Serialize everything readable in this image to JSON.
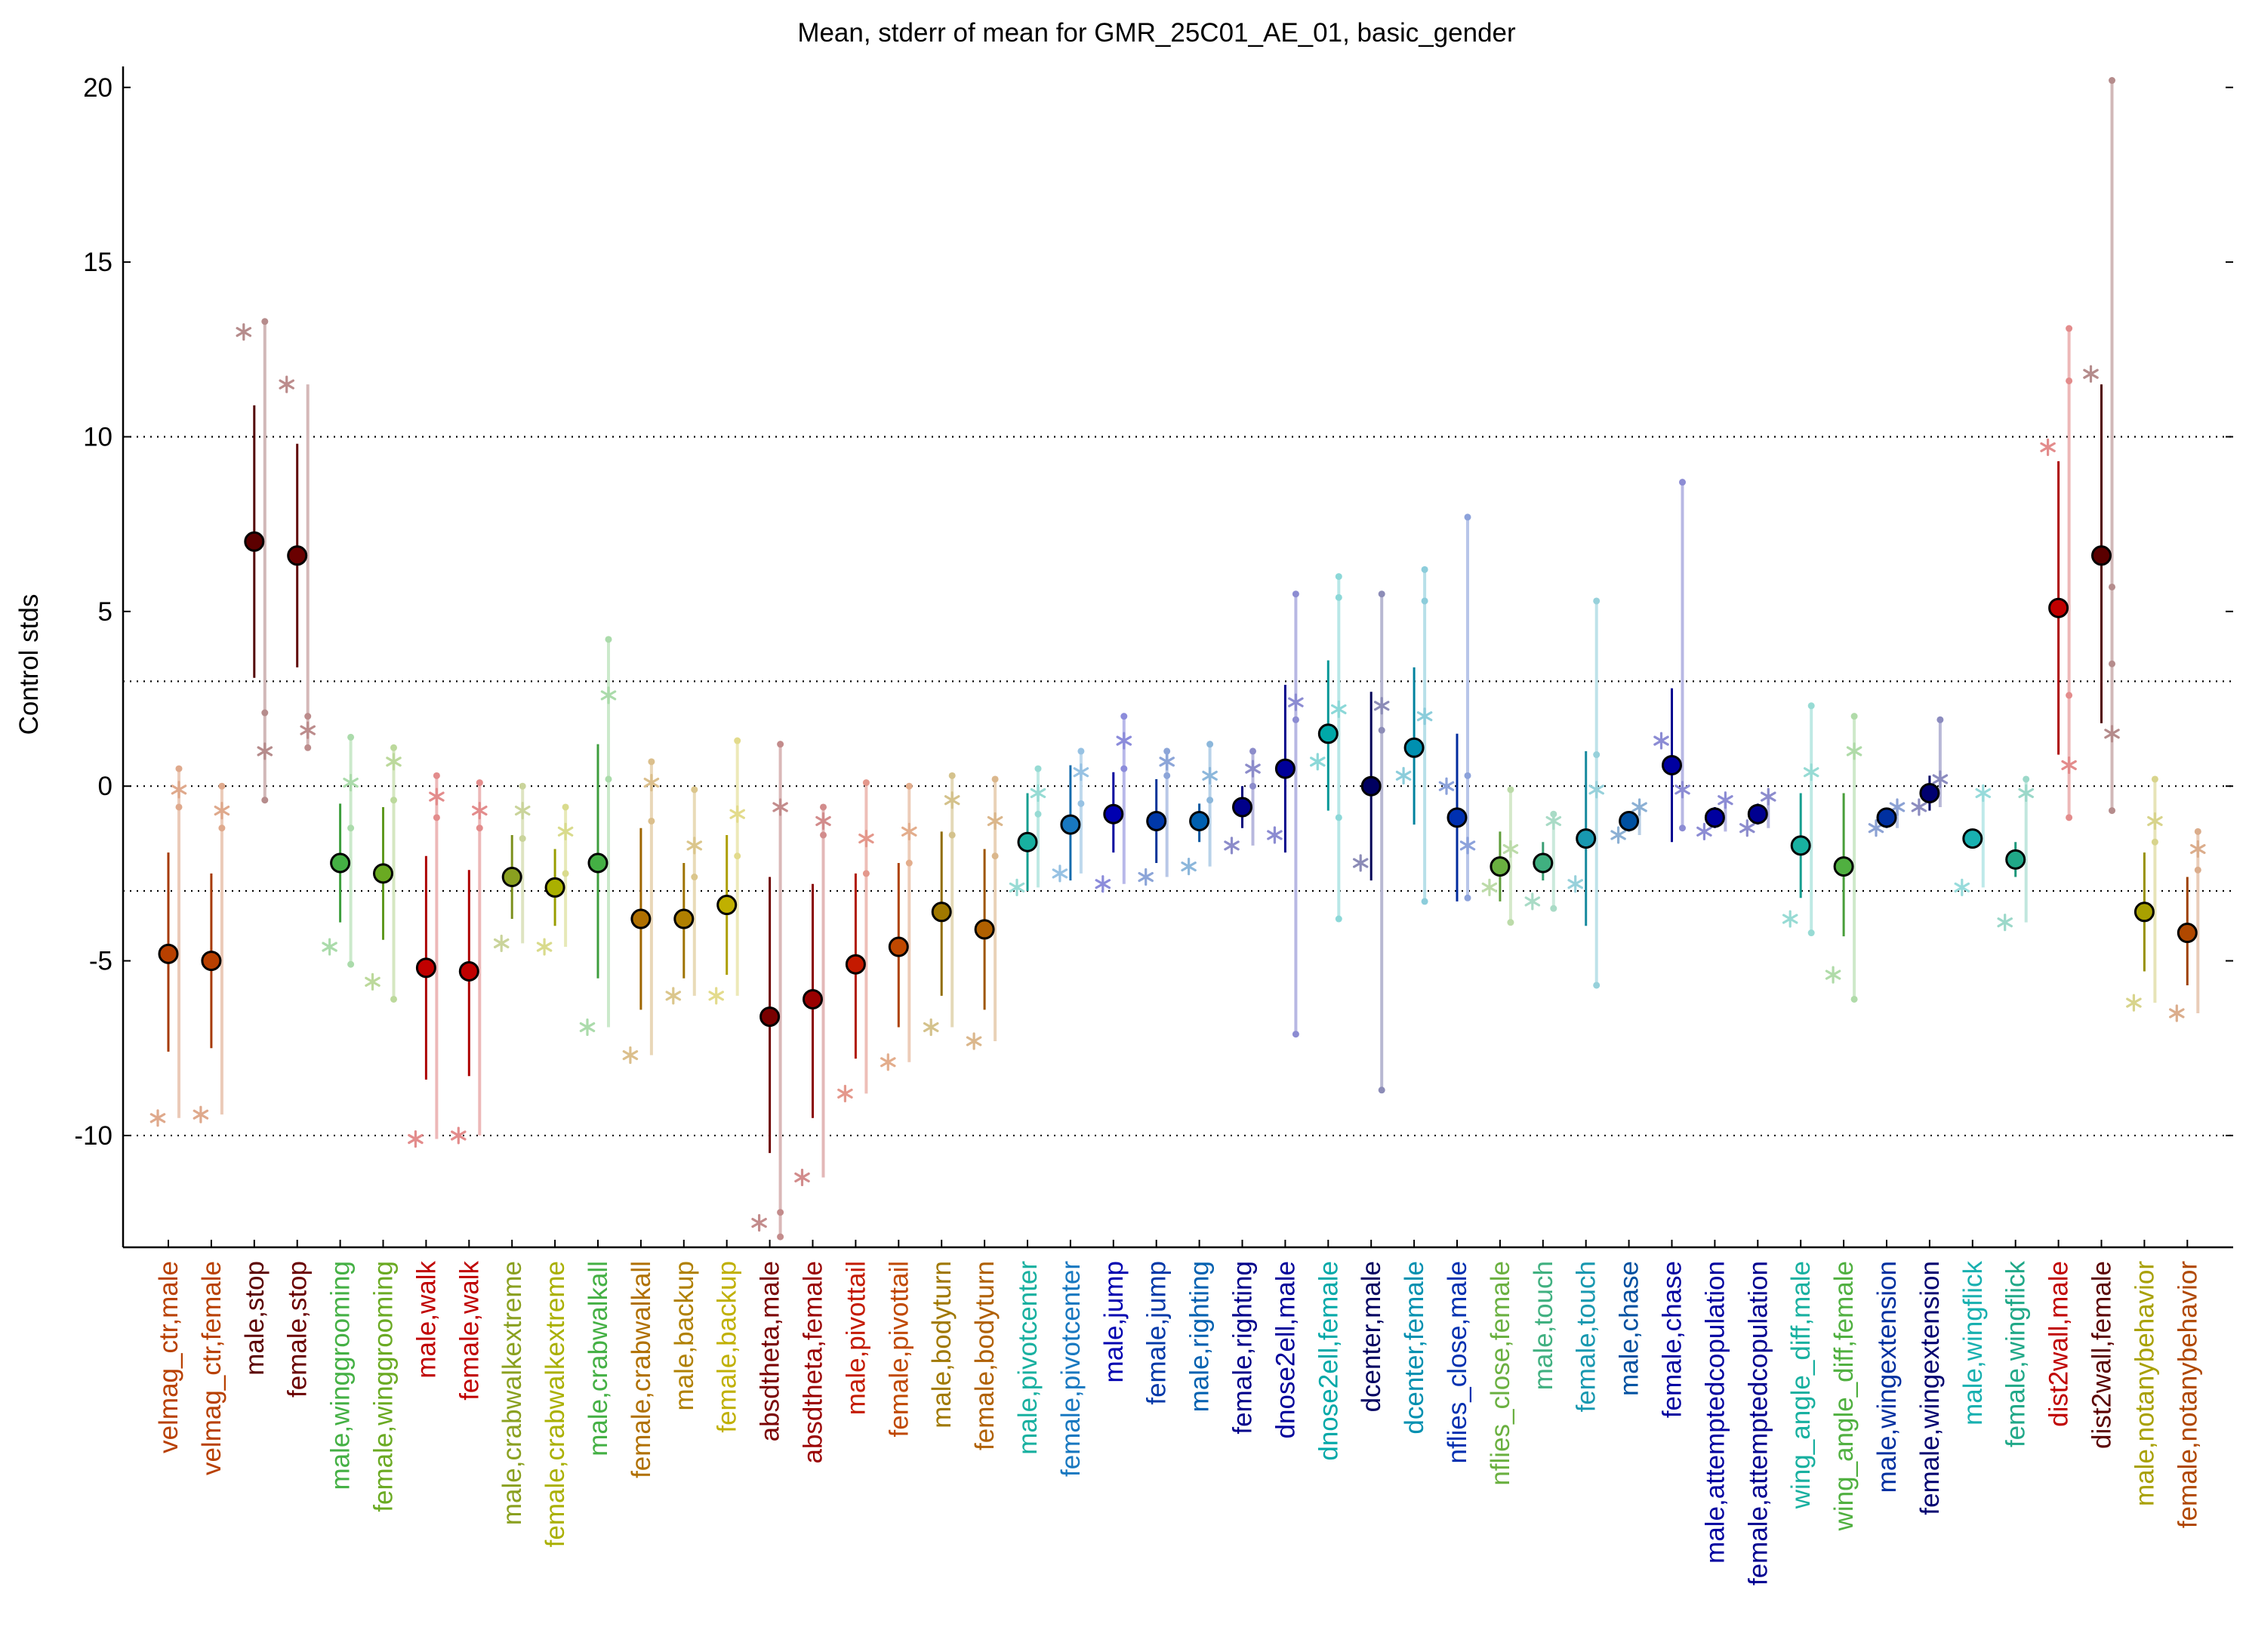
{
  "chart_data": {
    "type": "scatter",
    "title": "Mean, stderr of mean for GMR_25C01_AE_01, basic_gender",
    "xlabel": "",
    "ylabel": "Control stds",
    "ylim": [
      -13.2,
      20.6
    ],
    "yticks": [
      -10,
      -5,
      0,
      5,
      10,
      15,
      20
    ],
    "reference_lines": [
      -10,
      -3,
      0,
      3,
      10
    ],
    "grid": false,
    "legend": "none",
    "series": [
      {
        "label": "velmag_ctr,male",
        "color": "#b84000",
        "mean": -4.8,
        "se_low": -7.6,
        "se_high": -1.9,
        "stars": [
          -9.5,
          -0.1
        ],
        "points": [
          -0.6,
          0.5
        ]
      },
      {
        "label": "velmag_ctr,female",
        "color": "#b84000",
        "mean": -5.0,
        "se_low": -7.5,
        "se_high": -2.5,
        "stars": [
          -9.4,
          -0.7
        ],
        "points": [
          -1.2,
          0.0
        ]
      },
      {
        "label": "male,stop",
        "color": "#5c0000",
        "mean": 7.0,
        "se_low": 3.1,
        "se_high": 10.9,
        "stars": [
          13.0,
          1.0
        ],
        "points": [
          -0.4,
          2.1,
          13.3
        ]
      },
      {
        "label": "female,stop",
        "color": "#6a0000",
        "mean": 6.6,
        "se_low": 3.4,
        "se_high": 9.8,
        "stars": [
          11.5,
          1.6
        ],
        "points": [
          1.1,
          2.0
        ]
      },
      {
        "label": "male,winggrooming",
        "color": "#44b044",
        "mean": -2.2,
        "se_low": -3.9,
        "se_high": -0.5,
        "stars": [
          -4.6,
          0.1
        ],
        "points": [
          -5.1,
          -1.2,
          1.4
        ]
      },
      {
        "label": "female,winggrooming",
        "color": "#6aaa22",
        "mean": -2.5,
        "se_low": -4.4,
        "se_high": -0.6,
        "stars": [
          -5.6,
          0.7
        ],
        "points": [
          -6.1,
          -0.4,
          1.1
        ]
      },
      {
        "label": "male,walk",
        "color": "#c00000",
        "mean": -5.2,
        "se_low": -8.4,
        "se_high": -2.0,
        "stars": [
          -10.1,
          -0.3
        ],
        "points": [
          -0.9,
          0.3
        ]
      },
      {
        "label": "female,walk",
        "color": "#c00000",
        "mean": -5.3,
        "se_low": -8.3,
        "se_high": -2.4,
        "stars": [
          -10.0,
          -0.7
        ],
        "points": [
          -1.2,
          0.1
        ]
      },
      {
        "label": "male,crabwalkextreme",
        "color": "#8aa020",
        "mean": -2.6,
        "se_low": -3.8,
        "se_high": -1.4,
        "stars": [
          -4.5,
          -0.7
        ],
        "points": [
          -1.5,
          0.0
        ]
      },
      {
        "label": "female,crabwalkextreme",
        "color": "#aab000",
        "mean": -2.9,
        "se_low": -4.0,
        "se_high": -1.8,
        "stars": [
          -4.6,
          -1.3
        ],
        "points": [
          -2.5,
          -0.6
        ]
      },
      {
        "label": "male,crabwalkall",
        "color": "#44b044",
        "mean": -2.2,
        "se_low": -5.5,
        "se_high": 1.2,
        "stars": [
          -6.9,
          2.6
        ],
        "points": [
          0.2,
          4.2
        ]
      },
      {
        "label": "female,crabwalkall",
        "color": "#b07000",
        "mean": -3.8,
        "se_low": -6.4,
        "se_high": -1.2,
        "stars": [
          -7.7,
          0.1
        ],
        "points": [
          -1.0,
          0.7
        ]
      },
      {
        "label": "male,backup",
        "color": "#b08000",
        "mean": -3.8,
        "se_low": -5.5,
        "se_high": -2.2,
        "stars": [
          -6.0,
          -1.7
        ],
        "points": [
          -2.6,
          -0.1
        ]
      },
      {
        "label": "female,backup",
        "color": "#c0b000",
        "mean": -3.4,
        "se_low": -5.4,
        "se_high": -1.4,
        "stars": [
          -6.0,
          -0.8
        ],
        "points": [
          -2.0,
          1.3
        ]
      },
      {
        "label": "absdtheta,male",
        "color": "#7a0000",
        "mean": -6.6,
        "se_low": -10.5,
        "se_high": -2.6,
        "stars": [
          -12.5,
          -0.6
        ],
        "points": [
          -12.9,
          -12.2,
          1.2
        ]
      },
      {
        "label": "absdtheta,female",
        "color": "#9a0000",
        "mean": -6.1,
        "se_low": -9.5,
        "se_high": -2.8,
        "stars": [
          -11.2,
          -1.0
        ],
        "points": [
          -1.4,
          -0.6
        ]
      },
      {
        "label": "male,pivottail",
        "color": "#c41a00",
        "mean": -5.1,
        "se_low": -7.8,
        "se_high": -2.5,
        "stars": [
          -8.8,
          -1.5
        ],
        "points": [
          -2.5,
          0.1
        ]
      },
      {
        "label": "female,pivottail",
        "color": "#c04800",
        "mean": -4.6,
        "se_low": -6.9,
        "se_high": -2.2,
        "stars": [
          -7.9,
          -1.3
        ],
        "points": [
          -2.2,
          0.0
        ]
      },
      {
        "label": "male,bodyturn",
        "color": "#a07800",
        "mean": -3.6,
        "se_low": -6.0,
        "se_high": -1.3,
        "stars": [
          -6.9,
          -0.4
        ],
        "points": [
          -1.4,
          0.3
        ]
      },
      {
        "label": "female,bodyturn",
        "color": "#b06000",
        "mean": -4.1,
        "se_low": -6.4,
        "se_high": -1.8,
        "stars": [
          -7.3,
          -1.0
        ],
        "points": [
          -2.0,
          0.2
        ]
      },
      {
        "label": "male,pivotcenter",
        "color": "#18b0a0",
        "mean": -1.6,
        "se_low": -3.0,
        "se_high": -0.2,
        "stars": [
          -2.9,
          -0.2
        ],
        "points": [
          -0.8,
          0.5
        ]
      },
      {
        "label": "female,pivotcenter",
        "color": "#1878c0",
        "mean": -1.1,
        "se_low": -2.7,
        "se_high": 0.6,
        "stars": [
          -2.5,
          0.4
        ],
        "points": [
          -0.5,
          1.0
        ]
      },
      {
        "label": "male,jump",
        "color": "#0000b0",
        "mean": -0.8,
        "se_low": -1.9,
        "se_high": 0.4,
        "stars": [
          -2.8,
          1.3
        ],
        "points": [
          0.5,
          2.0
        ]
      },
      {
        "label": "female,jump",
        "color": "#0038a8",
        "mean": -1.0,
        "se_low": -2.2,
        "se_high": 0.2,
        "stars": [
          -2.6,
          0.7
        ],
        "points": [
          0.3,
          1.0
        ]
      },
      {
        "label": "male,righting",
        "color": "#0060b0",
        "mean": -1.0,
        "se_low": -1.6,
        "se_high": -0.5,
        "stars": [
          -2.3,
          0.3
        ],
        "points": [
          -0.4,
          1.2
        ]
      },
      {
        "label": "female,righting",
        "color": "#00008a",
        "mean": -0.6,
        "se_low": -1.2,
        "se_high": 0.0,
        "stars": [
          -1.7,
          0.5
        ],
        "points": [
          0.0,
          1.0
        ]
      },
      {
        "label": "dnose2ell,male",
        "color": "#00009a",
        "mean": 0.5,
        "se_low": -1.9,
        "se_high": 2.9,
        "stars": [
          -1.4,
          2.4
        ],
        "points": [
          -7.1,
          1.9,
          5.5
        ]
      },
      {
        "label": "dnose2ell,female",
        "color": "#00a8a8",
        "mean": 1.5,
        "se_low": -0.7,
        "se_high": 3.6,
        "stars": [
          0.7,
          2.2
        ],
        "points": [
          -3.8,
          -0.9,
          6.0,
          5.4
        ]
      },
      {
        "label": "dcenter,male",
        "color": "#000060",
        "mean": 0.0,
        "se_low": -2.7,
        "se_high": 2.7,
        "stars": [
          -2.2,
          2.3
        ],
        "points": [
          -8.7,
          1.6,
          5.5
        ]
      },
      {
        "label": "dcenter,female",
        "color": "#0090b0",
        "mean": 1.1,
        "se_low": -1.1,
        "se_high": 3.4,
        "stars": [
          0.3,
          2.0
        ],
        "points": [
          -3.3,
          6.2,
          5.3
        ]
      },
      {
        "label": "nflies_close,male",
        "color": "#0030b0",
        "mean": -0.9,
        "se_low": -3.3,
        "se_high": 1.5,
        "stars": [
          0.0,
          -1.7
        ],
        "points": [
          -3.2,
          7.7,
          0.3
        ]
      },
      {
        "label": "nflies_close,female",
        "color": "#6ab040",
        "mean": -2.3,
        "se_low": -3.3,
        "se_high": -1.3,
        "stars": [
          -2.9,
          -1.8
        ],
        "points": [
          -3.9,
          -0.1
        ]
      },
      {
        "label": "male,touch",
        "color": "#40b080",
        "mean": -2.2,
        "se_low": -2.7,
        "se_high": -1.6,
        "stars": [
          -3.3,
          -1.0
        ],
        "points": [
          -3.5,
          -0.8
        ]
      },
      {
        "label": "female,touch",
        "color": "#1898b0",
        "mean": -1.5,
        "se_low": -4.0,
        "se_high": 1.0,
        "stars": [
          -2.8,
          -0.1
        ],
        "points": [
          -5.7,
          5.3,
          0.9
        ]
      },
      {
        "label": "male,chase",
        "color": "#0050a0",
        "mean": -1.0,
        "se_low": -1.3,
        "se_high": -0.8,
        "stars": [
          -1.4,
          -0.6
        ],
        "points": []
      },
      {
        "label": "female,chase",
        "color": "#0000a0",
        "mean": 0.6,
        "se_low": -1.6,
        "se_high": 2.8,
        "stars": [
          1.3,
          -0.1
        ],
        "points": [
          -1.2,
          8.7
        ]
      },
      {
        "label": "male,attemptedcopulation",
        "color": "#0000a0",
        "mean": -0.9,
        "se_low": -1.2,
        "se_high": -0.6,
        "stars": [
          -1.3,
          -0.4
        ],
        "points": []
      },
      {
        "label": "female,attemptedcopulation",
        "color": "#000090",
        "mean": -0.8,
        "se_low": -1.1,
        "se_high": -0.5,
        "stars": [
          -1.2,
          -0.3
        ],
        "points": []
      },
      {
        "label": "wing_angle_diff,male",
        "color": "#18b0a0",
        "mean": -1.7,
        "se_low": -3.2,
        "se_high": -0.2,
        "stars": [
          -3.8,
          0.4
        ],
        "points": [
          -4.2,
          2.3
        ]
      },
      {
        "label": "wing_angle_diff,female",
        "color": "#50b040",
        "mean": -2.3,
        "se_low": -4.3,
        "se_high": -0.2,
        "stars": [
          -5.4,
          1.0
        ],
        "points": [
          -6.1,
          2.0
        ]
      },
      {
        "label": "male,wingextension",
        "color": "#0030a0",
        "mean": -0.9,
        "se_low": -1.2,
        "se_high": -0.7,
        "stars": [
          -1.2,
          -0.6
        ],
        "points": []
      },
      {
        "label": "female,wingextension",
        "color": "#000070",
        "mean": -0.2,
        "se_low": -0.7,
        "se_high": 0.3,
        "stars": [
          -0.6,
          0.2
        ],
        "points": [
          1.9
        ]
      },
      {
        "label": "male,wingflick",
        "color": "#18b0b0",
        "mean": -1.5,
        "se_low": -1.6,
        "se_high": -1.4,
        "stars": [
          -2.9,
          -0.2
        ],
        "points": []
      },
      {
        "label": "female,wingflick",
        "color": "#20a888",
        "mean": -2.1,
        "se_low": -2.6,
        "se_high": -1.6,
        "stars": [
          -3.9,
          -0.2
        ],
        "points": [
          0.2
        ]
      },
      {
        "label": "dist2wall,male",
        "color": "#c00000",
        "mean": 5.1,
        "se_low": 0.9,
        "se_high": 9.3,
        "stars": [
          9.7,
          0.6
        ],
        "points": [
          2.6,
          11.6,
          13.1,
          -0.9
        ]
      },
      {
        "label": "dist2wall,female",
        "color": "#5a0000",
        "mean": 6.6,
        "se_low": 1.8,
        "se_high": 11.5,
        "stars": [
          11.8,
          1.5
        ],
        "points": [
          5.7,
          20.2,
          3.5,
          -0.7
        ]
      },
      {
        "label": "male,notanybehavior",
        "color": "#a8a000",
        "mean": -3.6,
        "se_low": -5.3,
        "se_high": -1.9,
        "stars": [
          -6.2,
          -1.0
        ],
        "points": [
          -1.6,
          0.2
        ]
      },
      {
        "label": "female,notanybehavior",
        "color": "#b04800",
        "mean": -4.2,
        "se_low": -5.7,
        "se_high": -2.6,
        "stars": [
          -6.5,
          -1.8
        ],
        "points": [
          -2.4,
          -1.3
        ]
      }
    ]
  }
}
